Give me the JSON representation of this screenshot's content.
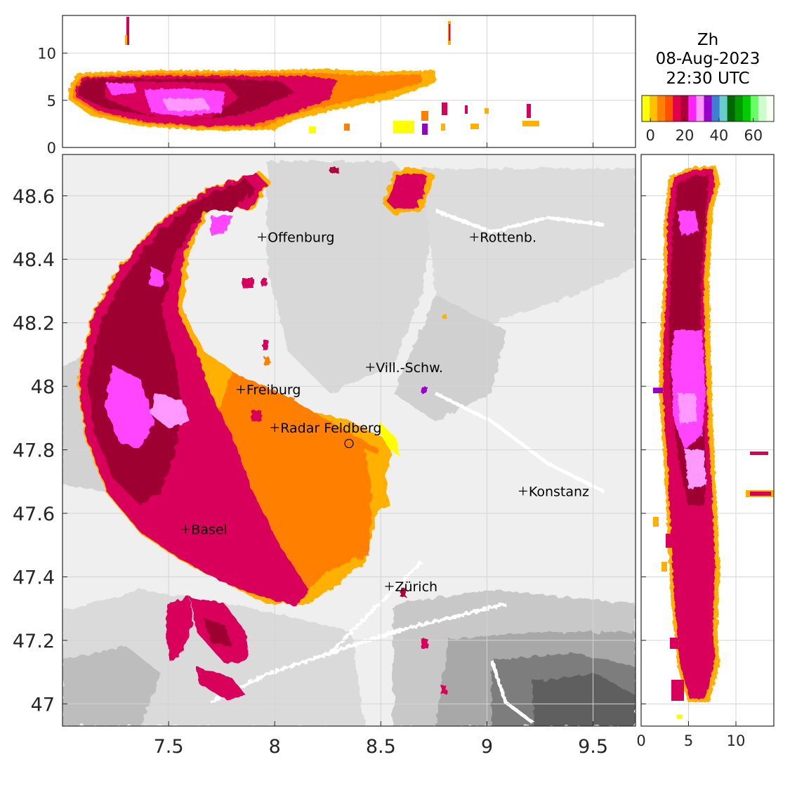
{
  "title": {
    "variable": "Zh",
    "date": "08-Aug-2023",
    "time": "22:30 UTC"
  },
  "colorbar": {
    "colors": [
      "#ffff00",
      "#ffc000",
      "#ff8000",
      "#ff5000",
      "#e0004c",
      "#b0003c",
      "#ff22ff",
      "#ff99ff",
      "#9900cc",
      "#3f7fcf",
      "#66cccc",
      "#006600",
      "#009900",
      "#00cc00",
      "#66ff66",
      "#ccffcc",
      "#f7fff0"
    ],
    "tick_labels": [
      "0",
      "20",
      "40",
      "60"
    ],
    "tick_values": [
      0,
      20,
      40,
      60
    ],
    "range": [
      -5,
      72
    ]
  },
  "main_map": {
    "lon_ticks": [
      "7.5",
      "8",
      "8.5",
      "9",
      "9.5"
    ],
    "lon_values": [
      7.5,
      8,
      8.5,
      9,
      9.5
    ],
    "lat_ticks": [
      "48.6",
      "48.4",
      "48.2",
      "48",
      "47.8",
      "47.6",
      "47.4",
      "47.2",
      "47"
    ],
    "lat_values": [
      48.6,
      48.4,
      48.2,
      48.0,
      47.8,
      47.6,
      47.4,
      47.2,
      47.0
    ],
    "lon_range": [
      7.0,
      9.7
    ],
    "lat_range": [
      46.93,
      48.73
    ],
    "cities": [
      {
        "name": "Offenburg",
        "lon": 7.94,
        "lat": 48.47
      },
      {
        "name": "Rottenb.",
        "lon": 8.94,
        "lat": 48.47
      },
      {
        "name": "Vill.-Schw.",
        "lon": 8.45,
        "lat": 48.06
      },
      {
        "name": "Freiburg",
        "lon": 7.84,
        "lat": 47.99
      },
      {
        "name": "Radar Feldberg",
        "lon": 8.0,
        "lat": 47.87
      },
      {
        "name": "Konstanz",
        "lon": 9.17,
        "lat": 47.67
      },
      {
        "name": "Basel",
        "lon": 7.58,
        "lat": 47.55
      },
      {
        "name": "Zürich",
        "lon": 8.54,
        "lat": 47.37
      }
    ],
    "radar_marker": {
      "lon": 8.35,
      "lat": 47.82
    }
  },
  "top_panel": {
    "y_ticks": [
      "0",
      "5",
      "10"
    ],
    "y_values": [
      0,
      5,
      10
    ],
    "y_range": [
      0,
      14
    ]
  },
  "right_panel": {
    "x_ticks": [
      "0",
      "5",
      "10"
    ],
    "x_values": [
      0,
      5,
      10
    ],
    "x_range": [
      0,
      14
    ]
  },
  "colors": {
    "background_terrain_light": "#efefef",
    "background_terrain_mid": "#d6d6d6",
    "background_terrain_dark": "#9a9a9a",
    "rain_dark": "#9e0030",
    "rain_crimson": "#d8005a",
    "rain_pink": "#ff44ff",
    "rain_light_pink": "#ff99ff",
    "rain_orange": "#ff8000",
    "rain_amber": "#ffb000",
    "rain_yellow": "#ffff00"
  }
}
